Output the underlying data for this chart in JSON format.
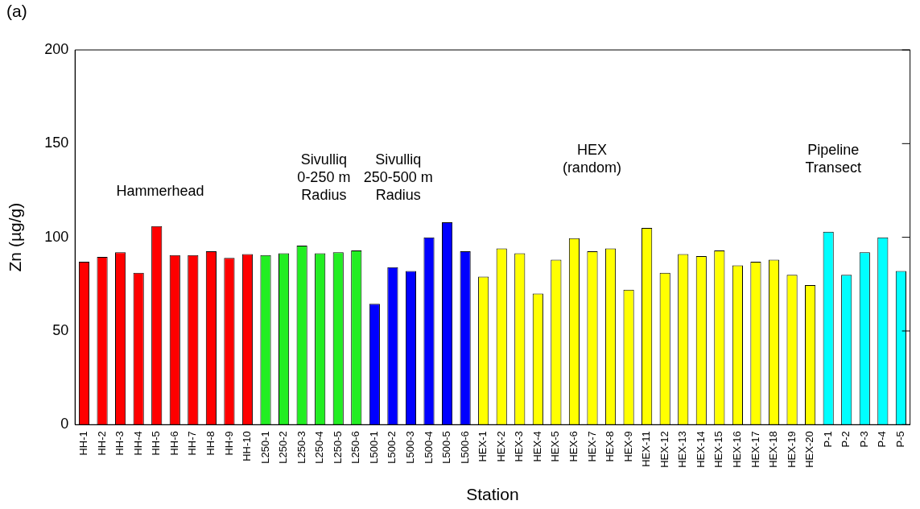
{
  "chart_data": {
    "type": "bar",
    "title": "(a)",
    "xlabel": "Station",
    "ylabel": "Zn (µg/g)",
    "categories": [
      "HH-1",
      "HH-2",
      "HH-3",
      "HH-4",
      "HH-5",
      "HH-6",
      "HH-7",
      "HH-8",
      "HH-9",
      "HH-10",
      "L250-1",
      "L250-2",
      "L250-3",
      "L250-4",
      "L250-5",
      "L250-6",
      "L500-1",
      "L500-2",
      "L500-3",
      "L500-4",
      "L500-5",
      "L500-6",
      "HEX-1",
      "HEX-2",
      "HEX-3",
      "HEX-4",
      "HEX-5",
      "HEX-6",
      "HEX-7",
      "HEX-8",
      "HEX-9",
      "HEX-11",
      "HEX-12",
      "HEX-13",
      "HEX-14",
      "HEX-15",
      "HEX-16",
      "HEX-17",
      "HEX-18",
      "HEX-19",
      "HEX-20",
      "P-1",
      "P-2",
      "P-3",
      "P-4",
      "P-5"
    ],
    "values": [
      87,
      89.5,
      92,
      81,
      106,
      90.5,
      90.5,
      92.5,
      89,
      91,
      90.5,
      91.5,
      95.5,
      91.5,
      92,
      93,
      64.5,
      84,
      82,
      100,
      108,
      92.5,
      79,
      94,
      91.5,
      70,
      88,
      99.5,
      92.5,
      94,
      72,
      105,
      81,
      91,
      90,
      93,
      85,
      87,
      88,
      80,
      74.5,
      103,
      80,
      92,
      100,
      82
    ],
    "colors": [
      "#ff0000",
      "#ff0000",
      "#ff0000",
      "#ff0000",
      "#ff0000",
      "#ff0000",
      "#ff0000",
      "#ff0000",
      "#ff0000",
      "#ff0000",
      "#22ee22",
      "#22ee22",
      "#22ee22",
      "#22ee22",
      "#22ee22",
      "#22ee22",
      "#0000ff",
      "#0000ff",
      "#0000ff",
      "#0000ff",
      "#0000ff",
      "#0000ff",
      "#ffff00",
      "#ffff00",
      "#ffff00",
      "#ffff00",
      "#ffff00",
      "#ffff00",
      "#ffff00",
      "#ffff00",
      "#ffff00",
      "#ffff00",
      "#ffff00",
      "#ffff00",
      "#ffff00",
      "#ffff00",
      "#ffff00",
      "#ffff00",
      "#ffff00",
      "#ffff00",
      "#ffff00",
      "#00ffff",
      "#00ffff",
      "#00ffff",
      "#00ffff",
      "#00ffff"
    ],
    "ylim": [
      0,
      200
    ],
    "yticks": [
      0,
      50,
      100,
      150,
      200
    ],
    "grid": false,
    "legend": false,
    "annotations": [
      "Hammerhead",
      "Sivulliq\n0-250 m\nRadius",
      "Sivulliq\n250-500 m\nRadius",
      "HEX\n(random)",
      "Pipeline\nTransect"
    ]
  }
}
